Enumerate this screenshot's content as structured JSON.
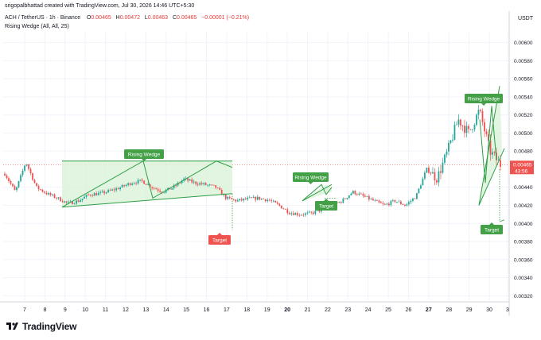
{
  "header": {
    "created_by": "srigopalbhattad created with TradingView.com, Jul 30, 2026 14:46 UTC+5:30"
  },
  "symbol": {
    "name": "ACH / TetherUS · 1h · Binance",
    "open_label": "O",
    "open": "0.00465",
    "high_label": "H",
    "high": "0.00472",
    "low_label": "L",
    "low": "0.00463",
    "close_label": "C",
    "close": "0.00465",
    "change": "−0.00001 (−0.21%)"
  },
  "indicator": {
    "text": "Rising Wedge (All, All, 25)"
  },
  "currency": "USDT",
  "price_badge": {
    "price": "0.00465",
    "countdown": "43:56"
  },
  "logo": {
    "text": "TradingView"
  },
  "colors": {
    "up": "#26a69a",
    "down": "#ef5350",
    "pattern": "#2e9e44",
    "pattern_fill": "#d9f2d9",
    "target_red": "#ef5350",
    "label_green": "#43a047"
  },
  "annotations": {
    "wedges": [
      "Rising Wedge",
      "Rising Wedge",
      "Rising Wedge"
    ],
    "targets": [
      "Target",
      "Target",
      "Target"
    ]
  },
  "chart_data": {
    "type": "candlestick",
    "x_tick_labels": [
      "7",
      "8",
      "9",
      "10",
      "11",
      "12",
      "13",
      "14",
      "15",
      "16",
      "17",
      "18",
      "19",
      "20",
      "21",
      "22",
      "23",
      "24",
      "25",
      "26",
      "27",
      "28",
      "29",
      "30",
      "3"
    ],
    "y_tick_labels": [
      "0.00600",
      "0.00580",
      "0.00560",
      "0.00540",
      "0.00520",
      "0.00500",
      "0.00480",
      "0.00440",
      "0.00420",
      "0.00400",
      "0.00380",
      "0.00360",
      "0.00340",
      "0.00320"
    ],
    "ylim": [
      0.00315,
      0.00612
    ],
    "last_price": 0.00465,
    "path": [
      [
        0,
        0.00455
      ],
      [
        1,
        0.00435
      ],
      [
        2,
        0.00468
      ],
      [
        3,
        0.0044
      ],
      [
        4,
        0.00433
      ],
      [
        5,
        0.00428
      ],
      [
        6,
        0.00422
      ],
      [
        7,
        0.00425
      ],
      [
        8,
        0.00432
      ],
      [
        9,
        0.00433
      ],
      [
        10,
        0.00436
      ],
      [
        11,
        0.0044
      ],
      [
        12,
        0.00445
      ],
      [
        13,
        0.00447
      ],
      [
        14,
        0.0044
      ],
      [
        15,
        0.00435
      ],
      [
        16,
        0.0044
      ],
      [
        17,
        0.00449
      ],
      [
        18,
        0.00445
      ],
      [
        19,
        0.00443
      ],
      [
        20,
        0.0044
      ],
      [
        21,
        0.00428
      ],
      [
        22,
        0.00425
      ],
      [
        23,
        0.00427
      ],
      [
        24,
        0.00428
      ],
      [
        25,
        0.00426
      ],
      [
        26,
        0.0042
      ],
      [
        27,
        0.00412
      ],
      [
        28,
        0.0041
      ],
      [
        29,
        0.00411
      ],
      [
        30,
        0.00415
      ],
      [
        31,
        0.0042
      ],
      [
        32,
        0.00425
      ],
      [
        33,
        0.00435
      ],
      [
        34,
        0.0043
      ],
      [
        35,
        0.00425
      ],
      [
        36,
        0.0042
      ],
      [
        37,
        0.00425
      ],
      [
        38,
        0.0042
      ],
      [
        39,
        0.0043
      ],
      [
        40,
        0.0046
      ],
      [
        41,
        0.0045
      ],
      [
        42,
        0.0048
      ],
      [
        43,
        0.00515
      ],
      [
        44,
        0.005
      ],
      [
        45,
        0.00525
      ],
      [
        46,
        0.0048
      ],
      [
        47,
        0.00465
      ]
    ]
  }
}
